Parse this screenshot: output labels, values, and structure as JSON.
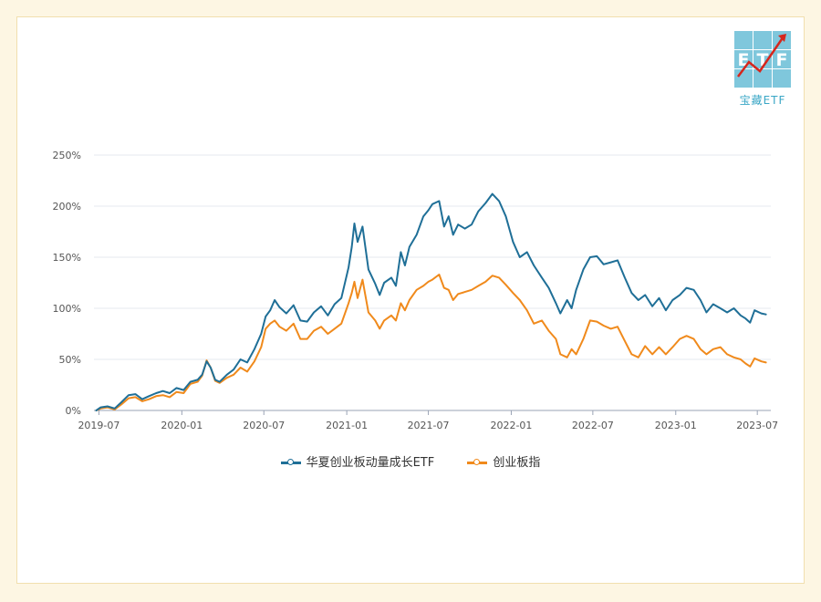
{
  "brand": {
    "logo_letters": [
      "E",
      "T",
      "F"
    ],
    "logo_text": "宝藏ETF",
    "tile_color": "#7fc7dc",
    "arrow_color": "#d6261c"
  },
  "colors": {
    "etf": "#1f6f97",
    "index": "#f08a1c",
    "grid": "#e4e8ef",
    "axis_text": "#555555"
  },
  "chart_data": {
    "type": "line",
    "title": "",
    "xlabel": "",
    "ylabel": "",
    "ylim": [
      0,
      250
    ],
    "y_ticks": [
      0,
      50,
      100,
      150,
      200,
      250
    ],
    "y_tick_labels": [
      "0%",
      "50%",
      "100%",
      "150%",
      "200%",
      "250%"
    ],
    "xlim": [
      "2019-06-20",
      "2023-07-31"
    ],
    "x_ticks": [
      "2019-07",
      "2020-01",
      "2020-07",
      "2021-01",
      "2021-07",
      "2022-01",
      "2022-07",
      "2023-01",
      "2023-07"
    ],
    "legend_position": "bottom",
    "grid": true,
    "series": [
      {
        "name": "华夏创业板动量成长ETF",
        "points": [
          [
            "2019-06-25",
            0
          ],
          [
            "2019-07-05",
            3
          ],
          [
            "2019-07-20",
            4
          ],
          [
            "2019-08-05",
            2
          ],
          [
            "2019-08-20",
            8
          ],
          [
            "2019-09-05",
            15
          ],
          [
            "2019-09-20",
            16
          ],
          [
            "2019-10-05",
            11
          ],
          [
            "2019-10-20",
            14
          ],
          [
            "2019-11-05",
            17
          ],
          [
            "2019-11-20",
            19
          ],
          [
            "2019-12-05",
            17
          ],
          [
            "2019-12-20",
            22
          ],
          [
            "2020-01-05",
            20
          ],
          [
            "2020-01-20",
            28
          ],
          [
            "2020-02-05",
            30
          ],
          [
            "2020-02-15",
            35
          ],
          [
            "2020-02-25",
            48
          ],
          [
            "2020-03-05",
            42
          ],
          [
            "2020-03-15",
            30
          ],
          [
            "2020-03-25",
            28
          ],
          [
            "2020-04-10",
            35
          ],
          [
            "2020-04-25",
            40
          ],
          [
            "2020-05-10",
            50
          ],
          [
            "2020-05-25",
            47
          ],
          [
            "2020-06-10",
            60
          ],
          [
            "2020-06-25",
            75
          ],
          [
            "2020-07-05",
            92
          ],
          [
            "2020-07-15",
            98
          ],
          [
            "2020-07-25",
            108
          ],
          [
            "2020-08-05",
            101
          ],
          [
            "2020-08-20",
            95
          ],
          [
            "2020-09-05",
            103
          ],
          [
            "2020-09-20",
            88
          ],
          [
            "2020-10-05",
            87
          ],
          [
            "2020-10-20",
            96
          ],
          [
            "2020-11-05",
            102
          ],
          [
            "2020-11-20",
            93
          ],
          [
            "2020-12-05",
            104
          ],
          [
            "2020-12-20",
            110
          ],
          [
            "2021-01-05",
            140
          ],
          [
            "2021-01-12",
            160
          ],
          [
            "2021-01-18",
            183
          ],
          [
            "2021-01-25",
            165
          ],
          [
            "2021-02-05",
            180
          ],
          [
            "2021-02-18",
            138
          ],
          [
            "2021-03-05",
            124
          ],
          [
            "2021-03-15",
            113
          ],
          [
            "2021-03-25",
            125
          ],
          [
            "2021-04-10",
            130
          ],
          [
            "2021-04-20",
            122
          ],
          [
            "2021-05-01",
            155
          ],
          [
            "2021-05-10",
            142
          ],
          [
            "2021-05-20",
            160
          ],
          [
            "2021-06-05",
            172
          ],
          [
            "2021-06-20",
            190
          ],
          [
            "2021-07-01",
            196
          ],
          [
            "2021-07-10",
            202
          ],
          [
            "2021-07-25",
            205
          ],
          [
            "2021-08-05",
            180
          ],
          [
            "2021-08-15",
            190
          ],
          [
            "2021-08-25",
            172
          ],
          [
            "2021-09-05",
            182
          ],
          [
            "2021-09-20",
            178
          ],
          [
            "2021-10-05",
            182
          ],
          [
            "2021-10-20",
            195
          ],
          [
            "2021-11-05",
            203
          ],
          [
            "2021-11-20",
            212
          ],
          [
            "2021-12-05",
            205
          ],
          [
            "2021-12-20",
            190
          ],
          [
            "2022-01-05",
            165
          ],
          [
            "2022-01-20",
            150
          ],
          [
            "2022-02-05",
            155
          ],
          [
            "2022-02-20",
            142
          ],
          [
            "2022-03-10",
            130
          ],
          [
            "2022-03-25",
            120
          ],
          [
            "2022-04-10",
            105
          ],
          [
            "2022-04-20",
            95
          ],
          [
            "2022-05-05",
            108
          ],
          [
            "2022-05-15",
            100
          ],
          [
            "2022-05-25",
            118
          ],
          [
            "2022-06-10",
            138
          ],
          [
            "2022-06-25",
            150
          ],
          [
            "2022-07-10",
            151
          ],
          [
            "2022-07-25",
            143
          ],
          [
            "2022-08-10",
            145
          ],
          [
            "2022-08-25",
            147
          ],
          [
            "2022-09-10",
            130
          ],
          [
            "2022-09-25",
            115
          ],
          [
            "2022-10-10",
            108
          ],
          [
            "2022-10-25",
            113
          ],
          [
            "2022-11-10",
            102
          ],
          [
            "2022-11-25",
            110
          ],
          [
            "2022-12-10",
            98
          ],
          [
            "2022-12-25",
            108
          ],
          [
            "2023-01-10",
            113
          ],
          [
            "2023-01-25",
            120
          ],
          [
            "2023-02-10",
            118
          ],
          [
            "2023-02-25",
            108
          ],
          [
            "2023-03-10",
            96
          ],
          [
            "2023-03-25",
            104
          ],
          [
            "2023-04-10",
            100
          ],
          [
            "2023-04-25",
            96
          ],
          [
            "2023-05-10",
            100
          ],
          [
            "2023-05-25",
            93
          ],
          [
            "2023-06-05",
            90
          ],
          [
            "2023-06-15",
            86
          ],
          [
            "2023-06-25",
            98
          ],
          [
            "2023-07-10",
            95
          ],
          [
            "2023-07-20",
            94
          ]
        ]
      },
      {
        "name": "创业板指",
        "points": [
          [
            "2019-06-25",
            0
          ],
          [
            "2019-07-05",
            2
          ],
          [
            "2019-07-20",
            3
          ],
          [
            "2019-08-05",
            1
          ],
          [
            "2019-08-20",
            6
          ],
          [
            "2019-09-05",
            12
          ],
          [
            "2019-09-20",
            13
          ],
          [
            "2019-10-05",
            9
          ],
          [
            "2019-10-20",
            11
          ],
          [
            "2019-11-05",
            14
          ],
          [
            "2019-11-20",
            15
          ],
          [
            "2019-12-05",
            13
          ],
          [
            "2019-12-20",
            18
          ],
          [
            "2020-01-05",
            17
          ],
          [
            "2020-01-20",
            26
          ],
          [
            "2020-02-05",
            28
          ],
          [
            "2020-02-15",
            34
          ],
          [
            "2020-02-25",
            49
          ],
          [
            "2020-03-05",
            42
          ],
          [
            "2020-03-15",
            29
          ],
          [
            "2020-03-25",
            27
          ],
          [
            "2020-04-10",
            32
          ],
          [
            "2020-04-25",
            35
          ],
          [
            "2020-05-10",
            42
          ],
          [
            "2020-05-25",
            38
          ],
          [
            "2020-06-10",
            48
          ],
          [
            "2020-06-25",
            62
          ],
          [
            "2020-07-05",
            80
          ],
          [
            "2020-07-15",
            85
          ],
          [
            "2020-07-25",
            88
          ],
          [
            "2020-08-05",
            82
          ],
          [
            "2020-08-20",
            78
          ],
          [
            "2020-09-05",
            85
          ],
          [
            "2020-09-20",
            70
          ],
          [
            "2020-10-05",
            70
          ],
          [
            "2020-10-20",
            78
          ],
          [
            "2020-11-05",
            82
          ],
          [
            "2020-11-20",
            75
          ],
          [
            "2020-12-05",
            80
          ],
          [
            "2020-12-20",
            85
          ],
          [
            "2021-01-05",
            105
          ],
          [
            "2021-01-12",
            115
          ],
          [
            "2021-01-18",
            126
          ],
          [
            "2021-01-25",
            110
          ],
          [
            "2021-02-05",
            128
          ],
          [
            "2021-02-18",
            96
          ],
          [
            "2021-03-05",
            88
          ],
          [
            "2021-03-15",
            80
          ],
          [
            "2021-03-25",
            88
          ],
          [
            "2021-04-10",
            93
          ],
          [
            "2021-04-20",
            88
          ],
          [
            "2021-05-01",
            105
          ],
          [
            "2021-05-10",
            98
          ],
          [
            "2021-05-20",
            108
          ],
          [
            "2021-06-05",
            118
          ],
          [
            "2021-06-20",
            122
          ],
          [
            "2021-07-01",
            126
          ],
          [
            "2021-07-10",
            128
          ],
          [
            "2021-07-25",
            133
          ],
          [
            "2021-08-05",
            120
          ],
          [
            "2021-08-15",
            118
          ],
          [
            "2021-08-25",
            108
          ],
          [
            "2021-09-05",
            114
          ],
          [
            "2021-09-20",
            116
          ],
          [
            "2021-10-05",
            118
          ],
          [
            "2021-10-20",
            122
          ],
          [
            "2021-11-05",
            126
          ],
          [
            "2021-11-20",
            132
          ],
          [
            "2021-12-05",
            130
          ],
          [
            "2021-12-20",
            123
          ],
          [
            "2022-01-05",
            115
          ],
          [
            "2022-01-20",
            108
          ],
          [
            "2022-02-05",
            98
          ],
          [
            "2022-02-20",
            85
          ],
          [
            "2022-03-10",
            88
          ],
          [
            "2022-03-25",
            78
          ],
          [
            "2022-04-10",
            70
          ],
          [
            "2022-04-20",
            55
          ],
          [
            "2022-05-05",
            52
          ],
          [
            "2022-05-15",
            60
          ],
          [
            "2022-05-25",
            55
          ],
          [
            "2022-06-10",
            70
          ],
          [
            "2022-06-25",
            88
          ],
          [
            "2022-07-10",
            87
          ],
          [
            "2022-07-25",
            83
          ],
          [
            "2022-08-10",
            80
          ],
          [
            "2022-08-25",
            82
          ],
          [
            "2022-09-10",
            68
          ],
          [
            "2022-09-25",
            55
          ],
          [
            "2022-10-10",
            52
          ],
          [
            "2022-10-25",
            63
          ],
          [
            "2022-11-10",
            55
          ],
          [
            "2022-11-25",
            62
          ],
          [
            "2022-12-10",
            55
          ],
          [
            "2022-12-25",
            62
          ],
          [
            "2023-01-10",
            70
          ],
          [
            "2023-01-25",
            73
          ],
          [
            "2023-02-10",
            70
          ],
          [
            "2023-02-25",
            60
          ],
          [
            "2023-03-10",
            55
          ],
          [
            "2023-03-25",
            60
          ],
          [
            "2023-04-10",
            62
          ],
          [
            "2023-04-25",
            55
          ],
          [
            "2023-05-10",
            52
          ],
          [
            "2023-05-25",
            50
          ],
          [
            "2023-06-05",
            46
          ],
          [
            "2023-06-15",
            43
          ],
          [
            "2023-06-25",
            51
          ],
          [
            "2023-07-10",
            48
          ],
          [
            "2023-07-20",
            47
          ]
        ]
      }
    ]
  }
}
